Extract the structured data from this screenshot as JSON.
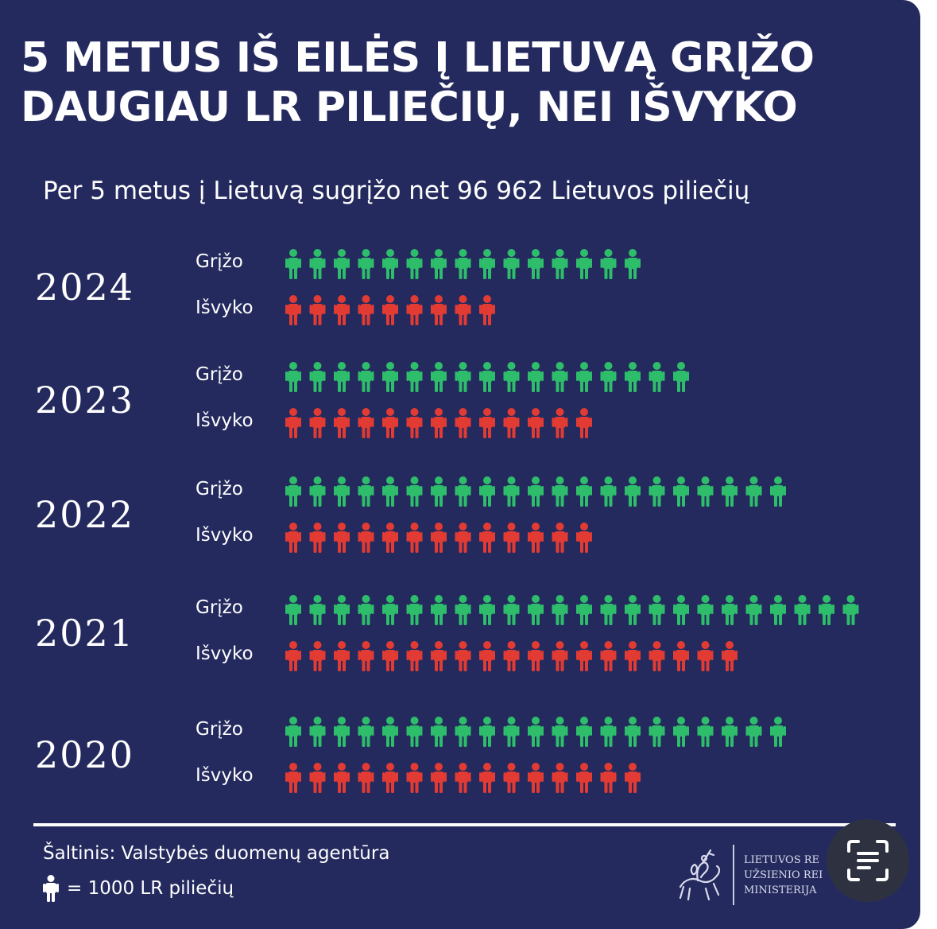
{
  "title_lines": [
    "5 METUS IŠ EILĖS Į LIETUVĄ GRĮŽO",
    "DAUGIAU LR PILIEČIŲ, NEI IŠVYKO"
  ],
  "subtitle": "Per 5 metus į Lietuvą sugrįžo net 96 962 Lietuvos piliečių",
  "colors": {
    "background": "#242a5e",
    "returned": "#2ebd6b",
    "left": "#e23b33",
    "text": "#ffffff"
  },
  "chart_data": {
    "type": "pictograph",
    "unit": "= 1000 LR piliečių",
    "series_labels": [
      "Grįžo",
      "Išvyko"
    ],
    "rows": [
      {
        "year": "2024",
        "returned": 15,
        "left": 9
      },
      {
        "year": "2023",
        "returned": 17,
        "left": 13
      },
      {
        "year": "2022",
        "returned": 21,
        "left": 13
      },
      {
        "year": "2021",
        "returned": 24,
        "left": 19
      },
      {
        "year": "2020",
        "returned": 21,
        "left": 15
      }
    ]
  },
  "footer": {
    "source": "Šaltinis: Valstybės duomenų agentūra",
    "legend_text": "= 1000 LR piliečių",
    "legend_icon": "person-icon",
    "ministry_lines": [
      "LIETUVOS RE",
      "UŽSIENIO REI",
      "MINISTERIJA"
    ],
    "ministry_icon": "vytis-emblem-icon"
  },
  "overlay": {
    "icon": "scan-text-icon"
  }
}
